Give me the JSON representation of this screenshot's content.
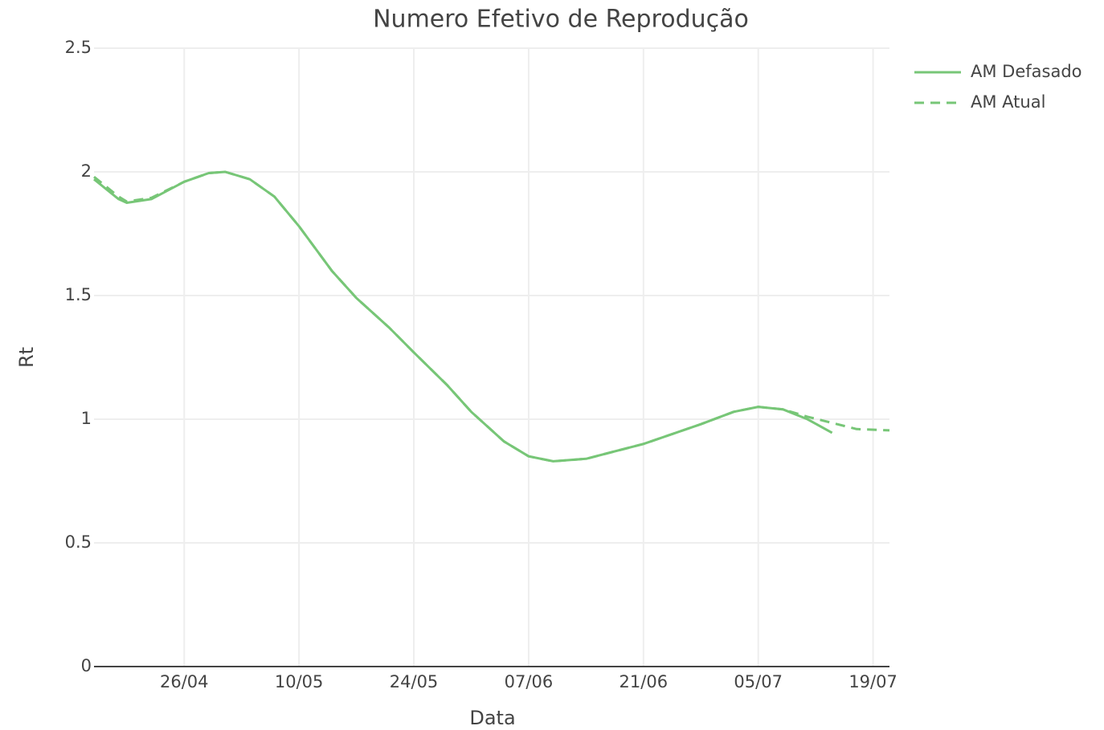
{
  "chart_data": {
    "type": "line",
    "title": "Numero Efetivo de Reprodução",
    "x_label": "Data",
    "y_label": "Rt",
    "x": [
      "15/04",
      "18/04",
      "19/04",
      "22/04",
      "26/04",
      "29/04",
      "01/05",
      "04/05",
      "07/05",
      "10/05",
      "14/05",
      "17/05",
      "21/05",
      "24/05",
      "28/05",
      "31/05",
      "04/06",
      "07/06",
      "10/06",
      "14/06",
      "21/06",
      "28/06",
      "02/07",
      "05/07",
      "08/07",
      "11/07",
      "14/07",
      "17/07",
      "21/07"
    ],
    "series": [
      {
        "name": "AM Defasado",
        "color": "#77c677",
        "dash": false,
        "values": [
          1.97,
          1.89,
          1.875,
          1.89,
          1.96,
          1.995,
          2.0,
          1.97,
          1.9,
          1.78,
          1.6,
          1.49,
          1.37,
          1.27,
          1.14,
          1.03,
          0.91,
          0.85,
          0.83,
          0.84,
          0.9,
          0.98,
          1.03,
          1.05,
          1.04,
          1.0,
          0.945,
          null,
          null
        ]
      },
      {
        "name": "AM Atual",
        "color": "#77c677",
        "dash": true,
        "values": [
          1.98,
          1.9,
          1.88,
          1.895,
          1.96,
          1.995,
          2.0,
          1.97,
          1.9,
          1.78,
          1.6,
          1.49,
          1.37,
          1.27,
          1.14,
          1.03,
          0.91,
          0.85,
          0.83,
          0.84,
          0.9,
          0.98,
          1.03,
          1.05,
          1.04,
          1.01,
          0.985,
          0.96,
          0.955
        ]
      }
    ],
    "xlim": [
      "15/04",
      "21/07"
    ],
    "xticks": [
      "26/04",
      "10/05",
      "24/05",
      "07/06",
      "21/06",
      "05/07",
      "19/07"
    ],
    "ylim": [
      0,
      2.5
    ],
    "yticks": [
      0,
      0.5,
      1,
      1.5,
      2,
      2.5
    ],
    "grid": true,
    "legend": "top-right"
  }
}
